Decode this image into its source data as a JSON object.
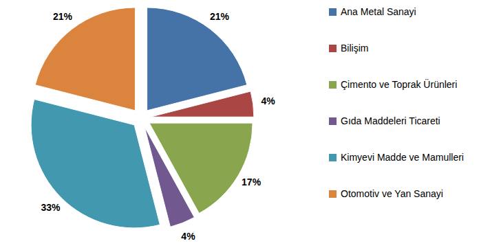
{
  "chart_data": {
    "type": "pie",
    "categories": [
      "Ana Metal Sanayi",
      "Bilişim",
      "Çimento ve Toprak Ürünleri",
      "Gıda Maddeleri Ticareti",
      "Kimyevi Madde ve Mamulleri",
      "Otomotiv ve Yan Sanayi"
    ],
    "values": [
      21,
      4,
      17,
      4,
      33,
      21
    ],
    "value_labels": [
      "21%",
      "4%",
      "17%",
      "4%",
      "33%",
      "21%"
    ],
    "colors": [
      "#4572a7",
      "#aa4643",
      "#89a54e",
      "#71588f",
      "#4198af",
      "#db843d"
    ],
    "data_labels": true,
    "legend": "right"
  }
}
